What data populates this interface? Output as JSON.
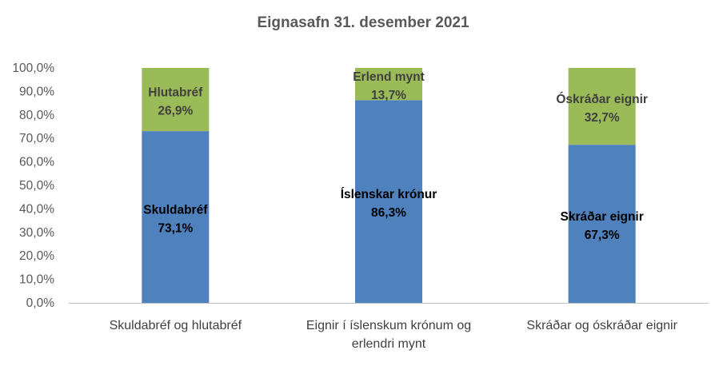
{
  "chart_data": {
    "type": "bar",
    "stacked": true,
    "title": "Eignasafn 31. desember 2021",
    "ylim": [
      0,
      100
    ],
    "y_tick_values": [
      0,
      10,
      20,
      30,
      40,
      50,
      60,
      70,
      80,
      90,
      100
    ],
    "y_tick_labels": [
      "0,0%",
      "10,0%",
      "20,0%",
      "30,0%",
      "40,0%",
      "50,0%",
      "60,0%",
      "70,0%",
      "80,0%",
      "90,0%",
      "100,0%"
    ],
    "grid": false,
    "legend": "none",
    "colors": {
      "bottom": "#4f81bd",
      "top": "#9bbb59",
      "bottom_label": "#000000",
      "top_label": "#404040",
      "axis": "#bfbfbf"
    },
    "categories": [
      {
        "lines": [
          "Skuldabréf og hlutabréf"
        ],
        "segments": [
          {
            "name": "Skuldabréf",
            "value": 73.1,
            "value_label": "73,1%"
          },
          {
            "name": "Hlutabréf",
            "value": 26.9,
            "value_label": "26,9%"
          }
        ]
      },
      {
        "lines": [
          "Eignir í íslenskum krónum og",
          "erlendri mynt"
        ],
        "segments": [
          {
            "name": "Íslenskar krónur",
            "value": 86.3,
            "value_label": "86,3%"
          },
          {
            "name": "Erlend mynt",
            "value": 13.7,
            "value_label": "13,7%"
          }
        ]
      },
      {
        "lines": [
          "Skráðar og óskráðar eignir"
        ],
        "segments": [
          {
            "name": "Skráðar eignir",
            "value": 67.3,
            "value_label": "67,3%"
          },
          {
            "name": "Óskráðar eignir",
            "value": 32.7,
            "value_label": "32,7%"
          }
        ]
      }
    ]
  }
}
